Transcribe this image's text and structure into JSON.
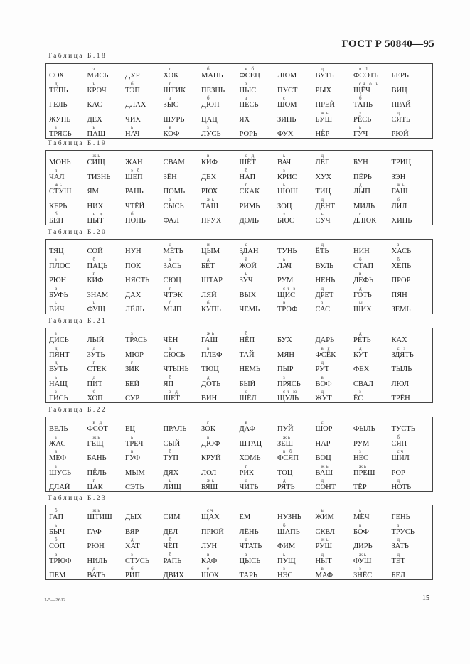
{
  "header": "ГОСТ Р 50840—95",
  "footer_left": "1-5—2612",
  "page_number": "15",
  "tables": [
    {
      "label": "Таблица Б.18",
      "rows": [
        [
          [
            "СОХ",
            ""
          ],
          [
            "МИСЬ",
            "з"
          ],
          [
            "ДУР",
            ""
          ],
          [
            "ХОК",
            "г"
          ],
          [
            "МАПЬ",
            "б"
          ],
          [
            "ФСЕЦ",
            "в б"
          ],
          [
            "ЛЮМ",
            ""
          ],
          [
            "ВУТЬ",
            "д"
          ],
          [
            "ФСОТЬ",
            "в 1"
          ],
          [
            "БЕРЬ",
            ""
          ]
        ],
        [
          [
            "ТЕПЬ",
            "д"
          ],
          [
            "КРОЧ",
            "ь"
          ],
          [
            "ТЭП",
            "б"
          ],
          [
            "ШТИК",
            "г"
          ],
          [
            "ПЕЗНЬ",
            ""
          ],
          [
            "НЫС",
            "з"
          ],
          [
            "ПУСТ",
            ""
          ],
          [
            "РЫХ",
            ""
          ],
          [
            "ЩЁЧ",
            "сч о ь"
          ],
          [
            "ВИЦ",
            ""
          ]
        ],
        [
          [
            "ГЕЛЬ",
            ""
          ],
          [
            "КАС",
            ""
          ],
          [
            "ДЛАХ",
            ""
          ],
          [
            "ЗЫС",
            "з"
          ],
          [
            "ДЮП",
            "б"
          ],
          [
            "ПЕСЬ",
            "з"
          ],
          [
            "ШОМ",
            "с"
          ],
          [
            "ПРЕЙ",
            ""
          ],
          [
            "ТАПЬ",
            "б"
          ],
          [
            "ПРАЙ",
            ""
          ]
        ],
        [
          [
            "ЖУНЬ",
            ""
          ],
          [
            "ДЕХ",
            ""
          ],
          [
            "ЧИХ",
            ""
          ],
          [
            "ШУРЬ",
            ""
          ],
          [
            "ЦАЦ",
            ""
          ],
          [
            "ЯХ",
            ""
          ],
          [
            "ЗИНЬ",
            ""
          ],
          [
            "БУШ",
            "жь"
          ],
          [
            "РЁСЬ",
            "з"
          ],
          [
            "СЯТЬ",
            "д"
          ]
        ],
        [
          [
            "ТРЯСЬ",
            "з"
          ],
          [
            "ПАЩ",
            "ь"
          ],
          [
            "НАЧ",
            "ь"
          ],
          [
            "КОФ",
            "в"
          ],
          [
            "ЛУСЬ",
            "з"
          ],
          [
            "РОРЬ",
            ""
          ],
          [
            "ФУХ",
            ""
          ],
          [
            "НЁР",
            ""
          ],
          [
            "ГУЧ",
            "ь"
          ],
          [
            "РЮЙ",
            ""
          ]
        ]
      ]
    },
    {
      "label": "Таблица Б.19",
      "rows": [
        [
          [
            "МОНЬ",
            ""
          ],
          [
            "СИЩ",
            "жь"
          ],
          [
            "ЖАН",
            ""
          ],
          [
            "СВАМ",
            ""
          ],
          [
            "КИФ",
            "в"
          ],
          [
            "ШЁТ",
            "о д"
          ],
          [
            "ВАЧ",
            "ь"
          ],
          [
            "ЛЕГ",
            "д"
          ],
          [
            "БУН",
            ""
          ],
          [
            "ТРИЦ",
            ""
          ]
        ],
        [
          [
            "ЧАЛ",
            "я"
          ],
          [
            "ТИЗНЬ",
            ""
          ],
          [
            "ШЕП",
            "э б"
          ],
          [
            "ЗЁН",
            ""
          ],
          [
            "ДЕХ",
            ""
          ],
          [
            "НАП",
            "б"
          ],
          [
            "КРИС",
            "з"
          ],
          [
            "ХУХ",
            ""
          ],
          [
            "ПЁРЬ",
            ""
          ],
          [
            "ЗЭН",
            ""
          ]
        ],
        [
          [
            "СТУШ",
            "жь"
          ],
          [
            "ЯМ",
            ""
          ],
          [
            "РАНЬ",
            ""
          ],
          [
            "ПОМЬ",
            ""
          ],
          [
            "РЮХ",
            ""
          ],
          [
            "СКАК",
            "г"
          ],
          [
            "НЮШ",
            "ь"
          ],
          [
            "ТИЦ",
            ""
          ],
          [
            "ЛЫП",
            "д"
          ],
          [
            "ГАШ",
            "жь"
          ]
        ],
        [
          [
            "КЕРЬ",
            ""
          ],
          [
            "НИХ",
            ""
          ],
          [
            "ЧТЁЙ",
            ""
          ],
          [
            "СЫСЬ",
            "з"
          ],
          [
            "ТАШ",
            "жь"
          ],
          [
            "РИМЬ",
            ""
          ],
          [
            "ЗОЦ",
            ""
          ],
          [
            "ДЕНТ",
            "д"
          ],
          [
            "МИЛЬ",
            ""
          ],
          [
            "ЛИЛ",
            "б"
          ]
        ],
        [
          [
            "БЕП",
            "б"
          ],
          [
            "ЦЫТ",
            "н д"
          ],
          [
            "ПОПЬ",
            "б"
          ],
          [
            "ФАЛ",
            ""
          ],
          [
            "ПРУХ",
            ""
          ],
          [
            "ДОЛЬ",
            ""
          ],
          [
            "БЮС",
            "з"
          ],
          [
            "СУЧ",
            "ь"
          ],
          [
            "ДЛЮК",
            "г"
          ],
          [
            "ХИНЬ",
            ""
          ]
        ]
      ]
    },
    {
      "label": "Таблица Б.20",
      "rows": [
        [
          [
            "ТЯЦ",
            ""
          ],
          [
            "СОЙ",
            ""
          ],
          [
            "НУН",
            ""
          ],
          [
            "МЁТЬ",
            "д"
          ],
          [
            "ЦЫМ",
            "и"
          ],
          [
            "ЗДАН",
            "с"
          ],
          [
            "ТУНЬ",
            ""
          ],
          [
            "ЁТЬ",
            "д"
          ],
          [
            "НИН",
            ""
          ],
          [
            "ХАСЬ",
            "з"
          ]
        ],
        [
          [
            "ПЛОС",
            "з"
          ],
          [
            "ПАЦЬ",
            "б"
          ],
          [
            "ПОК",
            ""
          ],
          [
            "ЗАСЬ",
            "з"
          ],
          [
            "БЕТ",
            "д"
          ],
          [
            "ЖОЙ",
            "ё"
          ],
          [
            "ЛАЧ",
            "ь"
          ],
          [
            "ВУЛЬ",
            ""
          ],
          [
            "СТАП",
            "б"
          ],
          [
            "ХЕПЬ",
            "б"
          ]
        ],
        [
          [
            "РЮН",
            ""
          ],
          [
            "КИФ",
            "г"
          ],
          [
            "НЯСТЬ",
            ""
          ],
          [
            "СЮЦ",
            ""
          ],
          [
            "ШТАР",
            ""
          ],
          [
            "ЗУЧ",
            "ь"
          ],
          [
            "РУМ",
            ""
          ],
          [
            "НЕНЬ",
            ""
          ],
          [
            "ДЕФЬ",
            "в"
          ],
          [
            "ПРОР",
            ""
          ]
        ],
        [
          [
            "БУФЬ",
            "в"
          ],
          [
            "ЗНАМ",
            ""
          ],
          [
            "ДАХ",
            ""
          ],
          [
            "ЧТЭК",
            "г"
          ],
          [
            "ЛЯЙ",
            ""
          ],
          [
            "ВЫХ",
            ""
          ],
          [
            "ЩИС",
            "сч з"
          ],
          [
            "ДРЕТ",
            "д"
          ],
          [
            "ГОТЬ",
            "д"
          ],
          [
            "ПЯН",
            ""
          ]
        ],
        [
          [
            "ВИЧ",
            "ь"
          ],
          [
            "ФУЩ",
            "ь"
          ],
          [
            "ЛЁЛЬ",
            ""
          ],
          [
            "МЫП",
            "б"
          ],
          [
            "КУПЬ",
            "б"
          ],
          [
            "ЧЕМЬ",
            ""
          ],
          [
            "ТРОФ",
            "в"
          ],
          [
            "САС",
            "з"
          ],
          [
            "ШИХ",
            "ы"
          ],
          [
            "ЗЕМЬ",
            ""
          ]
        ]
      ]
    },
    {
      "label": "Таблица Б.21",
      "rows": [
        [
          [
            "ДИСЬ",
            "з"
          ],
          [
            "ЛЫЙ",
            ""
          ],
          [
            "ТРАСЬ",
            "з"
          ],
          [
            "ЧЁН",
            ""
          ],
          [
            "ГАШ",
            "жь"
          ],
          [
            "НЁП",
            "б"
          ],
          [
            "БУХ",
            ""
          ],
          [
            "ДАРЬ",
            ""
          ],
          [
            "РЕТЬ",
            "д"
          ],
          [
            "КАХ",
            ""
          ]
        ],
        [
          [
            "ПЯНТ",
            "д"
          ],
          [
            "ЗУТЬ",
            "д"
          ],
          [
            "МЮР",
            ""
          ],
          [
            "СЮСЬ",
            "з"
          ],
          [
            "ПЛЕФ",
            "в"
          ],
          [
            "ТАЙ",
            ""
          ],
          [
            "МЯН",
            ""
          ],
          [
            "ФСЁК",
            "в г"
          ],
          [
            "КУТ",
            "д"
          ],
          [
            "ЗДЯТЬ",
            "с з"
          ]
        ],
        [
          [
            "ВУТЬ",
            "д"
          ],
          [
            "СТЕК",
            "г"
          ],
          [
            "ЗИК",
            "г"
          ],
          [
            "ЧТЫНЬ",
            ""
          ],
          [
            "ТЮЦ",
            ""
          ],
          [
            "НЕМЬ",
            ""
          ],
          [
            "ПЫР",
            ""
          ],
          [
            "РУТ",
            "д"
          ],
          [
            "ФЕХ",
            ""
          ],
          [
            "ТЫЛЬ",
            ""
          ]
        ],
        [
          [
            "НАЩ",
            "ь"
          ],
          [
            "ПИТ",
            "д"
          ],
          [
            "БЕЙ",
            ""
          ],
          [
            "ЯП",
            "б"
          ],
          [
            "ДОТЬ",
            "д"
          ],
          [
            "БЫЙ",
            ""
          ],
          [
            "ПРЯСЬ",
            "з"
          ],
          [
            "ВОФ",
            "в"
          ],
          [
            "СВАЛ",
            ""
          ],
          [
            "ЛЮЛ",
            ""
          ]
        ],
        [
          [
            "ГИСЬ",
            "з"
          ],
          [
            "ХОП",
            "б"
          ],
          [
            "СУР",
            ""
          ],
          [
            "ШЕТ",
            "э д"
          ],
          [
            "ВИН",
            ""
          ],
          [
            "ШЁЛ",
            "о"
          ],
          [
            "ЩУЛЬ",
            "сч ю"
          ],
          [
            "ЖУТ",
            "д"
          ],
          [
            "ЁС",
            "з"
          ],
          [
            "ТРЁН",
            ""
          ]
        ]
      ]
    },
    {
      "label": "Таблица Б.22",
      "rows": [
        [
          [
            "ВЕЛЬ",
            ""
          ],
          [
            "ФСОТ",
            "в д"
          ],
          [
            "ЕЦ",
            ""
          ],
          [
            "ПРАЛЬ",
            ""
          ],
          [
            "ЗОК",
            "г"
          ],
          [
            "ДАФ",
            "в"
          ],
          [
            "ПУЙ",
            ""
          ],
          [
            "ШОР",
            "с"
          ],
          [
            "ФЫЛЬ",
            ""
          ],
          [
            "ТУСТЬ",
            ""
          ]
        ],
        [
          [
            "ЖАС",
            "з"
          ],
          [
            "ГЕЩ",
            "жь"
          ],
          [
            "ТРЕЧ",
            "ь"
          ],
          [
            "СЫЙ",
            ""
          ],
          [
            "ДЮФ",
            "в"
          ],
          [
            "ШТАЦ",
            ""
          ],
          [
            "ЗЕШ",
            "жь"
          ],
          [
            "НАР",
            ""
          ],
          [
            "РУМ",
            ""
          ],
          [
            "СЯП",
            "б"
          ]
        ],
        [
          [
            "МЕФ",
            "в"
          ],
          [
            "БАНЬ",
            ""
          ],
          [
            "ГУФ",
            "в"
          ],
          [
            "ТУП",
            "б"
          ],
          [
            "КРУЙ",
            ""
          ],
          [
            "ХОМЬ",
            ""
          ],
          [
            "ФСЯП",
            "в б"
          ],
          [
            "ВОЦ",
            ""
          ],
          [
            "НЕС",
            "з"
          ],
          [
            "ШИЛ",
            "сч"
          ]
        ],
        [
          [
            "ШУСЬ",
            "з"
          ],
          [
            "ПЁЛЬ",
            ""
          ],
          [
            "МЫМ",
            ""
          ],
          [
            "ДЯХ",
            ""
          ],
          [
            "ЛОЛ",
            ""
          ],
          [
            "РИК",
            "г"
          ],
          [
            "ТОЦ",
            ""
          ],
          [
            "ВАШ",
            "жь"
          ],
          [
            "ПРЕШ",
            "жь"
          ],
          [
            "РОР",
            ""
          ]
        ],
        [
          [
            "ДЛАЙ",
            ""
          ],
          [
            "ЦАК",
            "г"
          ],
          [
            "СЭТЬ",
            ""
          ],
          [
            "ЛИЩ",
            "ь"
          ],
          [
            "БЯШ",
            "жь"
          ],
          [
            "ЧИТЬ",
            "д"
          ],
          [
            "РЯТЬ",
            "д"
          ],
          [
            "СОНТ",
            "д"
          ],
          [
            "ТЁР",
            ""
          ],
          [
            "НОТЬ",
            "д"
          ]
        ]
      ]
    },
    {
      "label": "Таблица Б.23",
      "rows": [
        [
          [
            "ГАП",
            "б"
          ],
          [
            "ШТИШ",
            "жь"
          ],
          [
            "ДЫХ",
            ""
          ],
          [
            "СИМ",
            ""
          ],
          [
            "ЩАХ",
            "сч"
          ],
          [
            "ЕМ",
            ""
          ],
          [
            "НУЗНЬ",
            ""
          ],
          [
            "ЖИМ",
            "ы"
          ],
          [
            "МЁЧ",
            "ь"
          ],
          [
            "ГЕНЬ",
            ""
          ]
        ],
        [
          [
            "БЫЧ",
            "ь"
          ],
          [
            "ГАФ",
            ""
          ],
          [
            "ВЯР",
            ""
          ],
          [
            "ДЕЛ",
            ""
          ],
          [
            "ПРЮЙ",
            ""
          ],
          [
            "ЛЁНЬ",
            ""
          ],
          [
            "ШАПЬ",
            "б"
          ],
          [
            "СКЕЛ",
            ""
          ],
          [
            "БОФ",
            "в"
          ],
          [
            "ТРУСЬ",
            "з"
          ]
        ],
        [
          [
            "СОП",
            "б"
          ],
          [
            "РЮН",
            ""
          ],
          [
            "ХАТ",
            "д"
          ],
          [
            "ЧЁП",
            "б"
          ],
          [
            "ЛУН",
            ""
          ],
          [
            "ЧТАТЬ",
            "д"
          ],
          [
            "ФИМ",
            ""
          ],
          [
            "РУШ",
            "жь"
          ],
          [
            "ДИРЬ",
            ""
          ],
          [
            "ЗАТЬ",
            "д"
          ]
        ],
        [
          [
            "ТРЮФ",
            "в"
          ],
          [
            "НИЛЬ",
            ""
          ],
          [
            "СТУСЬ",
            "з"
          ],
          [
            "РАПЬ",
            "б"
          ],
          [
            "КАФ",
            "в"
          ],
          [
            "ЦЫСЬ",
            "з"
          ],
          [
            "ПУЩ",
            "ь"
          ],
          [
            "НЫТ",
            "д"
          ],
          [
            "ФУШ",
            "жь"
          ],
          [
            "ТЕТ",
            "д"
          ]
        ],
        [
          [
            "ПЕМ",
            ""
          ],
          [
            "ВАТЬ",
            "д"
          ],
          [
            "РИП",
            "б"
          ],
          [
            "ДВИХ",
            ""
          ],
          [
            "ШОХ",
            "ё"
          ],
          [
            "ТАРЬ",
            ""
          ],
          [
            "НЭС",
            "з"
          ],
          [
            "МАФ",
            "в"
          ],
          [
            "ЗНЁС",
            "з"
          ],
          [
            "БЕЛ",
            ""
          ]
        ]
      ]
    }
  ]
}
